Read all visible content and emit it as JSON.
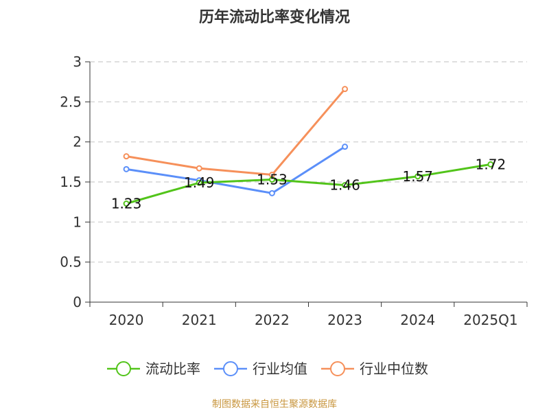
{
  "chart_data": {
    "type": "line",
    "title": "历年流动比率变化情况",
    "categories": [
      "2020",
      "2021",
      "2022",
      "2023",
      "2024",
      "2025Q1"
    ],
    "ylim": [
      0,
      3
    ],
    "yticks": [
      "0",
      "0.5",
      "1",
      "1.5",
      "2",
      "2.5",
      "3"
    ],
    "grid": true,
    "legend_position": "bottom",
    "series": [
      {
        "name": "流动比率",
        "color": "#52c41a",
        "values": [
          1.23,
          1.49,
          1.53,
          1.46,
          1.57,
          1.72
        ],
        "labels": [
          "1.23",
          "1.49",
          "1.53",
          "1.46",
          "1.57",
          "1.72"
        ]
      },
      {
        "name": "行业均值",
        "color": "#5b8ff9",
        "values": [
          1.66,
          1.52,
          1.36,
          1.94,
          null,
          null
        ]
      },
      {
        "name": "行业中位数",
        "color": "#f6905a",
        "values": [
          1.82,
          1.67,
          1.59,
          2.66,
          null,
          null
        ]
      }
    ]
  },
  "source": "制图数据来自恒生聚源数据库"
}
